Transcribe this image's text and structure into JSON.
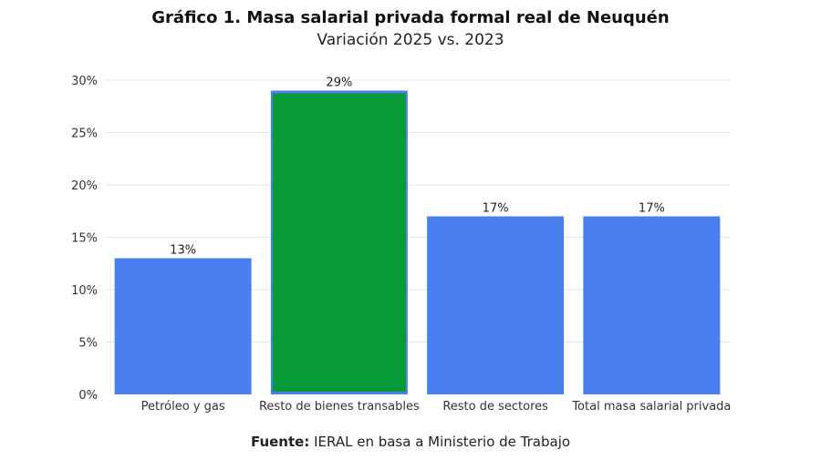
{
  "chart_data": {
    "type": "bar",
    "title": "Gráfico 1. Masa salarial privada formal real de Neuquén",
    "subtitle": "Variación 2025 vs. 2023",
    "categories": [
      "Petróleo y gas",
      "Resto de bienes transables",
      "Resto de sectores",
      "Total masa salarial privada"
    ],
    "values": [
      13,
      29,
      17,
      17
    ],
    "data_labels": [
      "13%",
      "29%",
      "17%",
      "17%"
    ],
    "highlighted_index": 1,
    "colors": {
      "default_bar": "#4a7ff2",
      "highlight_bar": "#079a36",
      "grid": "#e6e6e6"
    },
    "ylim": [
      0,
      30
    ],
    "yticks": [
      0,
      5,
      10,
      15,
      20,
      25,
      30
    ],
    "ytick_labels": [
      "0%",
      "5%",
      "10%",
      "15%",
      "20%",
      "25%",
      "30%"
    ],
    "xlabel": "",
    "ylabel": "",
    "grid": true,
    "legend": "none"
  },
  "source": {
    "label": "Fuente:",
    "text": "IERAL en basa a Ministerio de Trabajo"
  }
}
